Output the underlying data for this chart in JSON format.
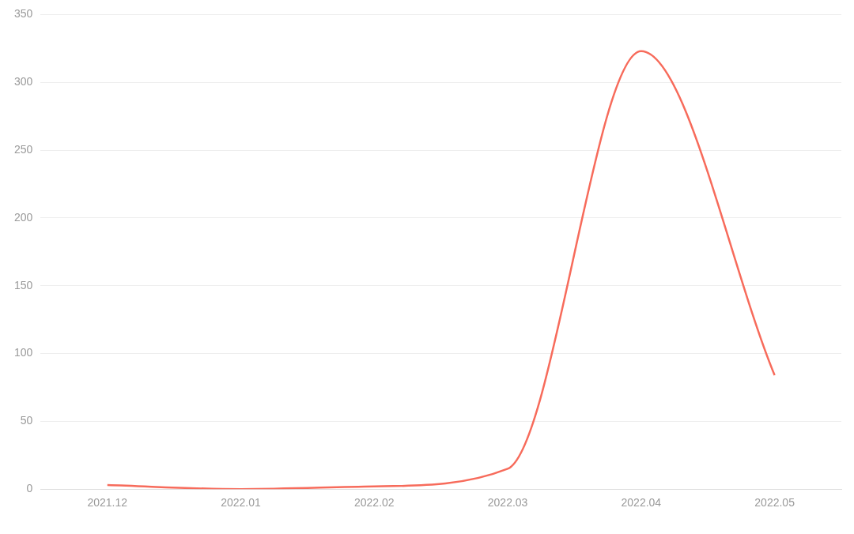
{
  "chart_data": {
    "type": "line",
    "categories": [
      "2021.12",
      "2022.01",
      "2022.02",
      "2022.03",
      "2022.04",
      "2022.05"
    ],
    "series": [
      {
        "color": "#f76b5b",
        "values": [
          3,
          0,
          2,
          15,
          323,
          84
        ]
      }
    ],
    "ylim": [
      0,
      350
    ],
    "yticks": [
      0,
      50,
      100,
      150,
      200,
      250,
      300,
      350
    ],
    "grid": "y",
    "legend": false,
    "marker": "none",
    "line_style": "solid"
  }
}
